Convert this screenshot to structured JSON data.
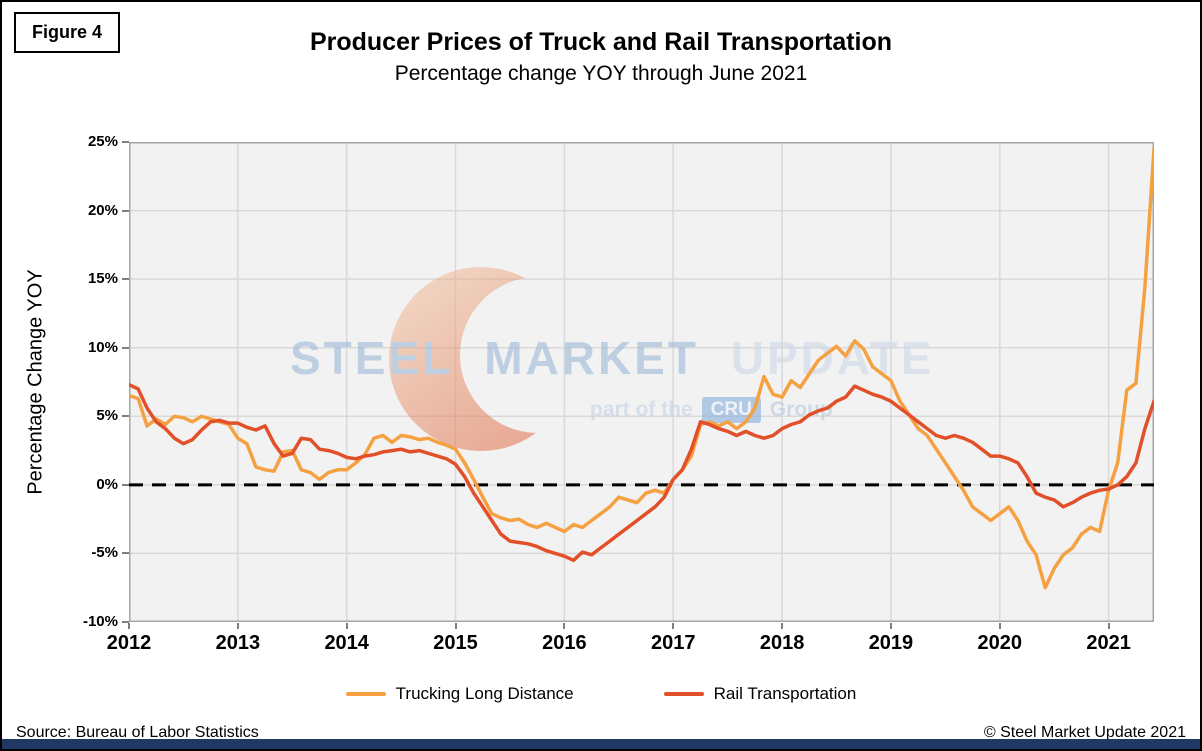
{
  "figure_label": "Figure 4",
  "header": {
    "title": "Producer Prices of Truck and Rail Transportation",
    "subtitle": "Percentage change YOY through June 2021"
  },
  "footer": {
    "source": "Source: Bureau of Labor Statistics",
    "copyright": "© Steel Market Update 2021"
  },
  "watermark": {
    "line1_a": "STEEL",
    "line1_b": "MARKET",
    "line1_c": "UPDATE",
    "line2_pre": "part of the",
    "line2_box": "CRU",
    "line2_post": "Group"
  },
  "colors": {
    "trucking": "#F5A142",
    "rail": "#E2502A",
    "zero_line": "#000000",
    "plot_bg": "#F2F2F2",
    "gridline": "#D9D9D9",
    "plot_border": "#A6A6A6",
    "tick_mark": "#7F7F7F",
    "bottom_bar": "#1F3864"
  },
  "chart_data": {
    "type": "line",
    "title": "Producer Prices of Truck and Rail Transportation",
    "subtitle": "Percentage change YOY through June 2021",
    "xlabel": "",
    "ylabel": "Percentage Change YOY",
    "ylim": [
      -10,
      25
    ],
    "y_ticks": [
      25,
      20,
      15,
      10,
      5,
      0,
      -5,
      -10
    ],
    "y_tick_labels": [
      "25%",
      "20%",
      "15%",
      "10%",
      "5%",
      "0%",
      "-5%",
      "-10%"
    ],
    "x_tick_labels": [
      "2012",
      "2013",
      "2014",
      "2015",
      "2016",
      "2017",
      "2018",
      "2019",
      "2020",
      "2021"
    ],
    "x_start": "2012-01",
    "x_end": "2021-06",
    "x_frequency": "monthly",
    "months_per_year": 12,
    "grid": true,
    "zero_reference_line": true,
    "legend_position": "bottom",
    "series": [
      {
        "name": "Trucking Long Distance",
        "color": "#F5A142",
        "values": [
          6.5,
          6.3,
          4.3,
          4.8,
          4.4,
          5.0,
          4.9,
          4.6,
          5.0,
          4.8,
          4.6,
          4.4,
          3.4,
          3.0,
          1.3,
          1.1,
          1.0,
          2.4,
          2.5,
          1.1,
          0.9,
          0.4,
          0.9,
          1.1,
          1.1,
          1.6,
          2.2,
          3.4,
          3.6,
          3.1,
          3.6,
          3.5,
          3.3,
          3.4,
          3.1,
          2.9,
          2.6,
          1.6,
          0.4,
          -0.9,
          -2.1,
          -2.4,
          -2.6,
          -2.5,
          -2.9,
          -3.1,
          -2.8,
          -3.1,
          -3.4,
          -2.9,
          -3.1,
          -2.6,
          -2.1,
          -1.6,
          -0.9,
          -1.1,
          -1.3,
          -0.6,
          -0.4,
          -0.6,
          0.4,
          1.1,
          2.1,
          4.4,
          4.6,
          4.3,
          4.6,
          4.1,
          4.6,
          5.6,
          7.9,
          6.6,
          6.4,
          7.6,
          7.1,
          8.1,
          9.1,
          9.6,
          10.1,
          9.4,
          10.5,
          9.9,
          8.6,
          8.1,
          7.6,
          6.1,
          5.1,
          4.1,
          3.6,
          2.6,
          1.6,
          0.6,
          -0.4,
          -1.6,
          -2.1,
          -2.6,
          -2.1,
          -1.6,
          -2.6,
          -4.1,
          -5.1,
          -7.5,
          -6.1,
          -5.1,
          -4.6,
          -3.6,
          -3.1,
          -3.4,
          -0.4,
          1.6,
          6.9,
          7.4,
          14.4,
          24.5
        ]
      },
      {
        "name": "Rail Transportation",
        "color": "#E2502A",
        "values": [
          7.3,
          7.0,
          5.6,
          4.6,
          4.1,
          3.4,
          3.0,
          3.3,
          4.0,
          4.6,
          4.7,
          4.5,
          4.5,
          4.2,
          4.0,
          4.3,
          3.0,
          2.1,
          2.3,
          3.4,
          3.3,
          2.6,
          2.5,
          2.3,
          2.0,
          1.9,
          2.1,
          2.2,
          2.4,
          2.5,
          2.6,
          2.4,
          2.5,
          2.3,
          2.1,
          1.9,
          1.5,
          0.6,
          -0.6,
          -1.6,
          -2.6,
          -3.6,
          -4.1,
          -4.2,
          -4.3,
          -4.5,
          -4.8,
          -5.0,
          -5.2,
          -5.5,
          -4.9,
          -5.1,
          -4.6,
          -4.1,
          -3.6,
          -3.1,
          -2.6,
          -2.1,
          -1.6,
          -0.9,
          0.4,
          1.1,
          2.6,
          4.6,
          4.4,
          4.1,
          3.9,
          3.6,
          3.9,
          3.6,
          3.4,
          3.6,
          4.1,
          4.4,
          4.6,
          5.1,
          5.4,
          5.6,
          6.1,
          6.4,
          7.2,
          6.9,
          6.6,
          6.4,
          6.1,
          5.6,
          5.1,
          4.6,
          4.1,
          3.6,
          3.4,
          3.6,
          3.4,
          3.1,
          2.6,
          2.1,
          2.1,
          1.9,
          1.6,
          0.6,
          -0.6,
          -0.9,
          -1.1,
          -1.6,
          -1.3,
          -0.9,
          -0.6,
          -0.4,
          -0.3,
          0.0,
          0.6,
          1.6,
          4.1,
          6.1
        ]
      }
    ]
  }
}
